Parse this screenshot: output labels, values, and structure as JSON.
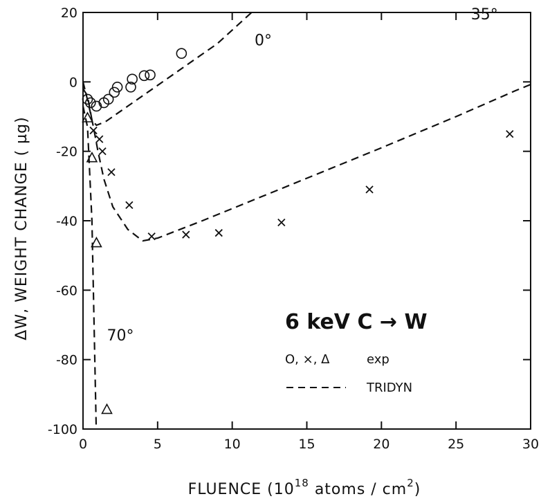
{
  "chart_data": {
    "type": "scatter",
    "title": "6 keV C → W",
    "xlabel": "FLUENCE (10^18 atoms / cm^2)",
    "xlabel_parts": {
      "main": "FLUENCE (10",
      "sup1": "18",
      "mid": " atoms / cm",
      "sup2": "2",
      "end": ")"
    },
    "ylabel": "ΔW, WEIGHT CHANGE ( µg)",
    "xlim": [
      0,
      30
    ],
    "ylim": [
      -100,
      20
    ],
    "xticks": [
      0,
      5,
      10,
      15,
      20,
      25,
      30
    ],
    "yticks": [
      20,
      0,
      -20,
      -40,
      -60,
      -80,
      -100
    ],
    "ytick_labels": [
      "20",
      "0",
      "-20",
      "-40",
      "-60",
      "-80",
      "-100"
    ],
    "grid": false,
    "legend": {
      "placement": "bottom-right",
      "entries": [
        {
          "symbol": "O, ×, Δ",
          "label": "exp"
        },
        {
          "symbol": "dashed-line",
          "label": "TRIDYN"
        }
      ]
    },
    "series": [
      {
        "name": "0°",
        "marker": "circle",
        "points": [
          [
            0.3,
            -5
          ],
          [
            0.5,
            -6
          ],
          [
            0.9,
            -7
          ],
          [
            1.4,
            -6
          ],
          [
            1.7,
            -5
          ],
          [
            2.1,
            -3
          ],
          [
            2.3,
            -1.5
          ],
          [
            3.2,
            -1.5
          ],
          [
            3.3,
            0.8
          ],
          [
            4.1,
            1.8
          ],
          [
            4.5,
            2
          ],
          [
            6.6,
            8.2
          ]
        ]
      },
      {
        "name": "35°",
        "marker": "x",
        "points": [
          [
            0.7,
            -14
          ],
          [
            1.1,
            -16.5
          ],
          [
            1.3,
            -20
          ],
          [
            1.9,
            -26
          ],
          [
            3.1,
            -35.5
          ],
          [
            4.6,
            -44.5
          ],
          [
            6.9,
            -44
          ],
          [
            9.1,
            -43.5
          ],
          [
            13.3,
            -40.5
          ],
          [
            19.2,
            -31
          ],
          [
            28.6,
            -15
          ]
        ]
      },
      {
        "name": "70°",
        "marker": "triangle",
        "points": [
          [
            0.3,
            -10.5
          ],
          [
            0.6,
            -22
          ],
          [
            0.9,
            -46.5
          ],
          [
            1.6,
            -94.5
          ]
        ]
      }
    ],
    "model_curves": [
      {
        "name": "0°",
        "style": "dashed",
        "x": [
          0,
          0.3,
          0.6,
          0.9,
          1.5,
          3,
          6,
          9,
          11.3
        ],
        "y": [
          -2,
          -4,
          -11,
          -12.5,
          -11.5,
          -7,
          2,
          11,
          20
        ]
      },
      {
        "name": "35°",
        "style": "dashed",
        "x": [
          0,
          0.35,
          0.7,
          1.0,
          1.4,
          2.0,
          3.0,
          4.0,
          5.0,
          8.0,
          12.0,
          16.0,
          20.0,
          25.0,
          29.0,
          31.0
        ],
        "y": [
          0,
          -6,
          -13,
          -20,
          -28,
          -36,
          -42.5,
          -45.8,
          -45,
          -40,
          -33,
          -26,
          -19,
          -10,
          -2.5,
          1
        ]
      },
      {
        "name": "70°",
        "style": "dashed",
        "x": [
          0.0,
          0.3,
          0.6,
          0.9
        ],
        "y": [
          -7,
          -13,
          -40,
          -103
        ]
      }
    ],
    "annotations": [
      {
        "text": "0°",
        "x": 11.5,
        "y": 10.5
      },
      {
        "text": "35°",
        "x": 26.0,
        "y": 18.0
      },
      {
        "text": "70°",
        "x": 1.6,
        "y": -74.5
      }
    ]
  }
}
